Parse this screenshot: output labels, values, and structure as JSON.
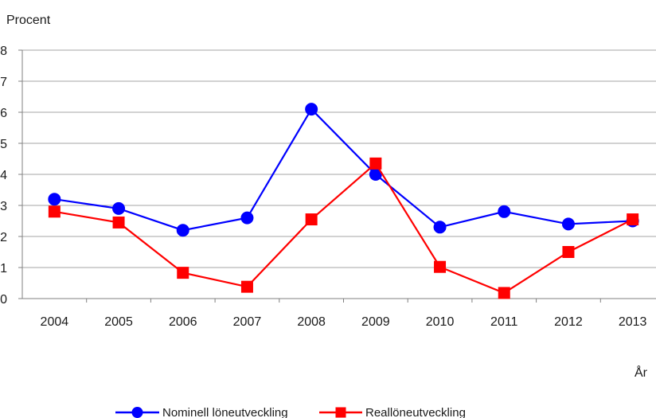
{
  "chart_data": {
    "type": "line",
    "ylabel": "Procent",
    "xlabel": "År",
    "categories": [
      "2004",
      "2005",
      "2006",
      "2007",
      "2008",
      "2009",
      "2010",
      "2011",
      "2012",
      "2013"
    ],
    "yticks": [
      "0",
      "1",
      "2",
      "3",
      "4",
      "5",
      "6",
      "7",
      "8"
    ],
    "ylim": [
      0,
      8
    ],
    "grid": true,
    "legend_position": "bottom",
    "series": [
      {
        "name": "Nominell löneutveckling",
        "color": "#0000ff",
        "marker": "circle",
        "values": [
          3.2,
          2.9,
          2.2,
          2.6,
          6.1,
          4.0,
          2.3,
          2.8,
          2.4,
          2.5
        ]
      },
      {
        "name": "Reallöneutveckling",
        "color": "#ff0000",
        "marker": "square",
        "values": [
          2.8,
          2.45,
          0.83,
          0.38,
          2.55,
          4.35,
          1.02,
          0.18,
          1.5,
          2.55
        ]
      }
    ]
  }
}
